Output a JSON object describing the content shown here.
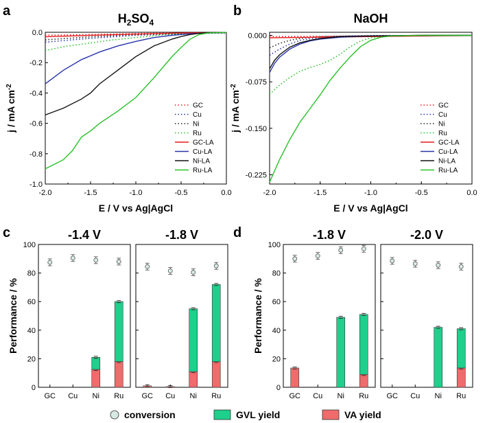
{
  "chart_data": [
    {
      "panel": "a",
      "type": "line",
      "title": "H2SO4",
      "xlabel": "E / V vs Ag|AgCl",
      "ylabel": "j / mA cm-2",
      "xlim": [
        -2.0,
        0.0
      ],
      "ylim": [
        -1.0,
        0.0
      ],
      "xticks": [
        "-2.0",
        "-1.5",
        "-1.0",
        "-0.5",
        "0.0"
      ],
      "yticks": [
        "0.0",
        "-0.2",
        "-0.4",
        "-0.6",
        "-0.8",
        "-1.0"
      ],
      "legend": "bottom-right",
      "series": [
        {
          "name": "GC",
          "style": "dotted",
          "color": "#e8191c",
          "x": [
            -2.0,
            -1.5,
            -1.0,
            -0.5,
            0.0
          ],
          "y": [
            -0.02,
            -0.015,
            -0.008,
            -0.004,
            -0.002
          ]
        },
        {
          "name": "Cu",
          "style": "dotted",
          "color": "#2732a8",
          "x": [
            -2.0,
            -1.5,
            -1.0,
            -0.5,
            0.0
          ],
          "y": [
            -0.065,
            -0.04,
            -0.02,
            -0.01,
            -0.004
          ]
        },
        {
          "name": "Ni",
          "style": "dotted",
          "color": "#222222",
          "x": [
            -2.0,
            -1.5,
            -1.0,
            -0.5,
            0.0
          ],
          "y": [
            -0.05,
            -0.03,
            -0.015,
            -0.008,
            -0.003
          ]
        },
        {
          "name": "Ru",
          "style": "dotted",
          "color": "#27c027",
          "x": [
            -2.0,
            -1.75,
            -1.5,
            -1.25,
            -1.0,
            -0.75,
            -0.5,
            0.0
          ],
          "y": [
            -0.12,
            -0.09,
            -0.07,
            -0.05,
            -0.035,
            -0.02,
            -0.01,
            -0.003
          ]
        },
        {
          "name": "GC-LA",
          "style": "solid",
          "color": "#e8191c",
          "x": [
            -2.0,
            -1.5,
            -1.0,
            -0.5,
            0.0
          ],
          "y": [
            -0.03,
            -0.02,
            -0.012,
            -0.005,
            -0.002
          ]
        },
        {
          "name": "Cu-LA",
          "style": "solid",
          "color": "#2732a8",
          "x": [
            -2.0,
            -1.8,
            -1.6,
            -1.4,
            -1.2,
            -1.0,
            -0.8,
            -0.6,
            -0.4,
            -0.2,
            0.0
          ],
          "y": [
            -0.34,
            -0.25,
            -0.18,
            -0.13,
            -0.09,
            -0.06,
            -0.035,
            -0.02,
            -0.01,
            -0.004,
            -0.002
          ]
        },
        {
          "name": "Ni-LA",
          "style": "solid",
          "color": "#111111",
          "x": [
            -2.0,
            -1.8,
            -1.6,
            -1.5,
            -1.4,
            -1.2,
            -1.0,
            -0.8,
            -0.6,
            -0.5,
            -0.4,
            -0.3,
            -0.2,
            0.0
          ],
          "y": [
            -0.545,
            -0.5,
            -0.44,
            -0.4,
            -0.34,
            -0.25,
            -0.16,
            -0.09,
            -0.045,
            -0.028,
            -0.015,
            -0.007,
            -0.003,
            -0.001
          ]
        },
        {
          "name": "Ru-LA",
          "style": "solid",
          "color": "#27c027",
          "x": [
            -2.0,
            -1.8,
            -1.7,
            -1.6,
            -1.5,
            -1.4,
            -1.2,
            -1.0,
            -0.8,
            -0.6,
            -0.5,
            -0.4,
            -0.3,
            -0.2,
            0.0
          ],
          "y": [
            -0.9,
            -0.84,
            -0.78,
            -0.69,
            -0.65,
            -0.6,
            -0.52,
            -0.43,
            -0.3,
            -0.16,
            -0.1,
            -0.045,
            -0.015,
            -0.004,
            -0.001
          ]
        }
      ]
    },
    {
      "panel": "b",
      "type": "line",
      "title": "NaOH",
      "xlabel": "E / V vs Ag|AgCl",
      "ylabel": "j / mA cm-2",
      "xlim": [
        -2.0,
        0.0
      ],
      "ylim": [
        -0.24,
        0.005
      ],
      "xticks": [
        "-2.0",
        "-1.5",
        "-1.0",
        "-0.5",
        "0.0"
      ],
      "yticks": [
        "0.000",
        "-0.075",
        "-0.150",
        "-0.225"
      ],
      "legend": "bottom-right",
      "series": [
        {
          "name": "GC",
          "style": "dotted",
          "color": "#e8191c",
          "x": [
            -2.0,
            -1.5,
            -1.0,
            -0.5,
            0.0
          ],
          "y": [
            -0.002,
            -0.0015,
            -0.001,
            -0.0005,
            -0.0002
          ]
        },
        {
          "name": "Cu",
          "style": "dotted",
          "color": "#2732a8",
          "x": [
            -2.0,
            -1.9,
            -1.8,
            -1.7,
            -1.5,
            -1.2,
            -1.0,
            0.0
          ],
          "y": [
            -0.032,
            -0.022,
            -0.014,
            -0.008,
            -0.003,
            -0.001,
            -0.0005,
            0.0
          ]
        },
        {
          "name": "Ni",
          "style": "dotted",
          "color": "#222222",
          "x": [
            -2.0,
            -1.9,
            -1.8,
            -1.7,
            -1.5,
            -1.2,
            -1.0,
            0.0
          ],
          "y": [
            -0.02,
            -0.013,
            -0.008,
            -0.005,
            -0.002,
            -0.001,
            -0.0005,
            0.0
          ]
        },
        {
          "name": "Ru",
          "style": "dotted",
          "color": "#27c027",
          "x": [
            -2.0,
            -1.9,
            -1.8,
            -1.7,
            -1.6,
            -1.5,
            -1.4,
            -1.3,
            -1.2,
            -1.1,
            -1.0,
            -0.9,
            -0.8,
            -0.5,
            0.0
          ],
          "y": [
            -0.095,
            -0.08,
            -0.068,
            -0.058,
            -0.052,
            -0.047,
            -0.04,
            -0.03,
            -0.018,
            -0.009,
            -0.004,
            -0.002,
            -0.001,
            0.0,
            0.0
          ]
        },
        {
          "name": "GC-LA",
          "style": "solid",
          "color": "#e8191c",
          "x": [
            -2.0,
            -1.5,
            -1.0,
            -0.5,
            0.0
          ],
          "y": [
            -0.004,
            -0.003,
            -0.002,
            -0.001,
            -0.0003
          ]
        },
        {
          "name": "Cu-LA",
          "style": "solid",
          "color": "#2732a8",
          "x": [
            -2.0,
            -1.95,
            -1.9,
            -1.8,
            -1.7,
            -1.6,
            -1.5,
            -1.3,
            -1.0,
            -0.5,
            0.0
          ],
          "y": [
            -0.06,
            -0.045,
            -0.035,
            -0.022,
            -0.014,
            -0.009,
            -0.006,
            -0.003,
            -0.001,
            0.0,
            0.0
          ]
        },
        {
          "name": "Ni-LA",
          "style": "solid",
          "color": "#111111",
          "x": [
            -2.0,
            -1.95,
            -1.9,
            -1.8,
            -1.7,
            -1.6,
            -1.5,
            -1.3,
            -1.0,
            -0.5,
            0.0
          ],
          "y": [
            -0.054,
            -0.04,
            -0.031,
            -0.019,
            -0.012,
            -0.008,
            -0.005,
            -0.002,
            -0.001,
            0.0,
            0.0
          ]
        },
        {
          "name": "Ru-LA",
          "style": "solid",
          "color": "#27c027",
          "x": [
            -2.0,
            -1.9,
            -1.8,
            -1.7,
            -1.6,
            -1.5,
            -1.4,
            -1.3,
            -1.2,
            -1.1,
            -1.0,
            -0.9,
            -0.8,
            -0.5,
            0.0
          ],
          "y": [
            -0.237,
            -0.2,
            -0.168,
            -0.14,
            -0.118,
            -0.096,
            -0.072,
            -0.052,
            -0.034,
            -0.018,
            -0.008,
            -0.003,
            -0.001,
            0.0,
            0.0
          ]
        }
      ]
    },
    {
      "panel": "c",
      "type": "bar",
      "stacked": true,
      "ylabel": "Performance / %",
      "ylim": [
        0,
        100
      ],
      "yticks": [
        "0",
        "20",
        "40",
        "60",
        "80",
        "100"
      ],
      "subplots": [
        {
          "title": "-1.4 V",
          "categories": [
            "GC",
            "Cu",
            "Ni",
            "Ru"
          ],
          "va": [
            0,
            0,
            12.5,
            18
          ],
          "gvl": [
            0,
            0,
            8.5,
            42
          ],
          "conversion": [
            87.5,
            90.5,
            89,
            88
          ]
        },
        {
          "title": "-1.8 V",
          "categories": [
            "GC",
            "Cu",
            "Ni",
            "Ru"
          ],
          "va": [
            1,
            0.5,
            11,
            18
          ],
          "gvl": [
            0,
            0,
            44,
            54
          ],
          "conversion": [
            84.5,
            81.5,
            80.5,
            85
          ]
        }
      ]
    },
    {
      "panel": "d",
      "type": "bar",
      "stacked": true,
      "ylabel": "Performance / %",
      "ylim": [
        0,
        100
      ],
      "yticks": [
        "0",
        "20",
        "40",
        "60",
        "80",
        "100"
      ],
      "subplots": [
        {
          "title": "-1.8 V",
          "categories": [
            "GC",
            "Cu",
            "Ni",
            "Ru"
          ],
          "va": [
            13.5,
            0,
            0,
            9
          ],
          "gvl": [
            0,
            0,
            49,
            42
          ],
          "conversion": [
            90,
            92,
            96,
            97
          ]
        },
        {
          "title": "-2.0 V",
          "categories": [
            "GC",
            "Cu",
            "Ni",
            "Ru"
          ],
          "va": [
            0,
            0,
            0,
            13.5
          ],
          "gvl": [
            0,
            0,
            42,
            27.5
          ],
          "conversion": [
            88.5,
            86.5,
            85.5,
            84.5
          ]
        }
      ]
    }
  ],
  "panel_letters": [
    "a",
    "b",
    "c",
    "d"
  ],
  "legend": {
    "conversion": "conversion",
    "gvl": "GVL yield",
    "va": "VA yield"
  },
  "colors": {
    "gvl": "#1fcf8c",
    "va": "#f06b6b",
    "conversion_fill": "#d7e9e3"
  }
}
